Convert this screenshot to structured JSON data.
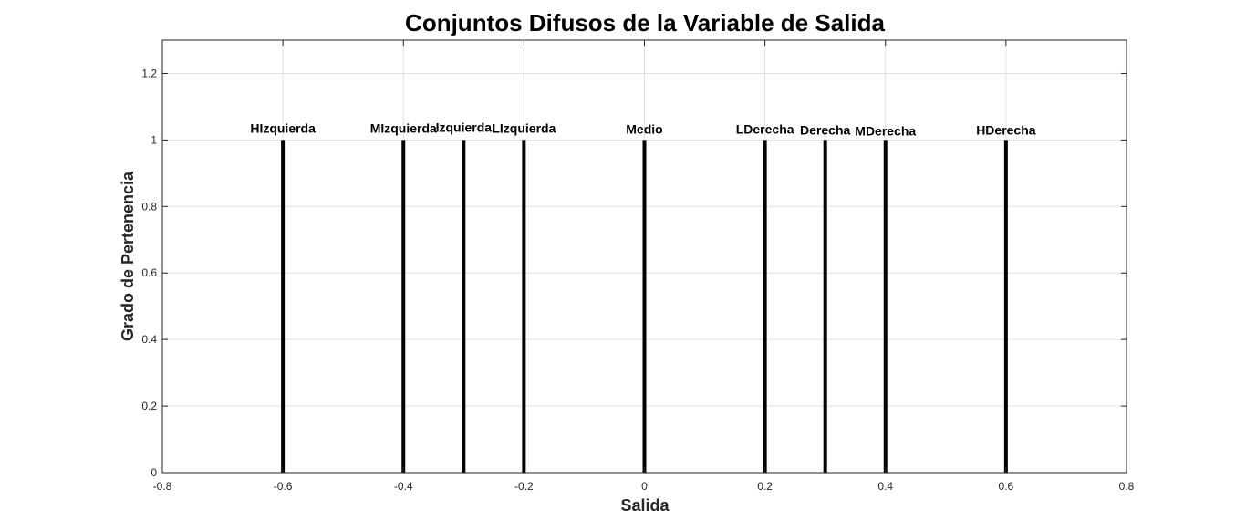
{
  "chart_data": {
    "type": "line",
    "title": "Conjuntos Difusos de la Variable de Salida",
    "xlabel": "Salida",
    "ylabel": "Grado de Pertenencia",
    "xlim": [
      -0.8,
      0.8
    ],
    "ylim": [
      0,
      1.3
    ],
    "x_ticks": [
      -0.8,
      -0.6,
      -0.4,
      -0.2,
      0,
      0.2,
      0.4,
      0.6,
      0.8
    ],
    "x_tick_labels": [
      "-0.8",
      "-0.6",
      "-0.4",
      "-0.2",
      "0",
      "0.2",
      "0.4",
      "0.6",
      "0.8"
    ],
    "y_ticks": [
      0,
      0.2,
      0.4,
      0.6,
      0.8,
      1,
      1.2
    ],
    "y_tick_labels": [
      "0",
      "0.2",
      "0.4",
      "0.6",
      "0.8",
      "1",
      "1.2"
    ],
    "grid": true,
    "series": [
      {
        "name": "HIzquierda",
        "x": -0.6,
        "y": 1
      },
      {
        "name": "MIzquierda",
        "x": -0.4,
        "y": 1
      },
      {
        "name": "Izquierda",
        "x": -0.3,
        "y": 1
      },
      {
        "name": "LIzquierda",
        "x": -0.2,
        "y": 1
      },
      {
        "name": "Medio",
        "x": 0,
        "y": 1
      },
      {
        "name": "LDerecha",
        "x": 0.2,
        "y": 1
      },
      {
        "name": "Derecha",
        "x": 0.3,
        "y": 1
      },
      {
        "name": "MDerecha",
        "x": 0.4,
        "y": 1
      },
      {
        "name": "HDerecha",
        "x": 0.6,
        "y": 1
      }
    ],
    "line_color": "#000000"
  }
}
